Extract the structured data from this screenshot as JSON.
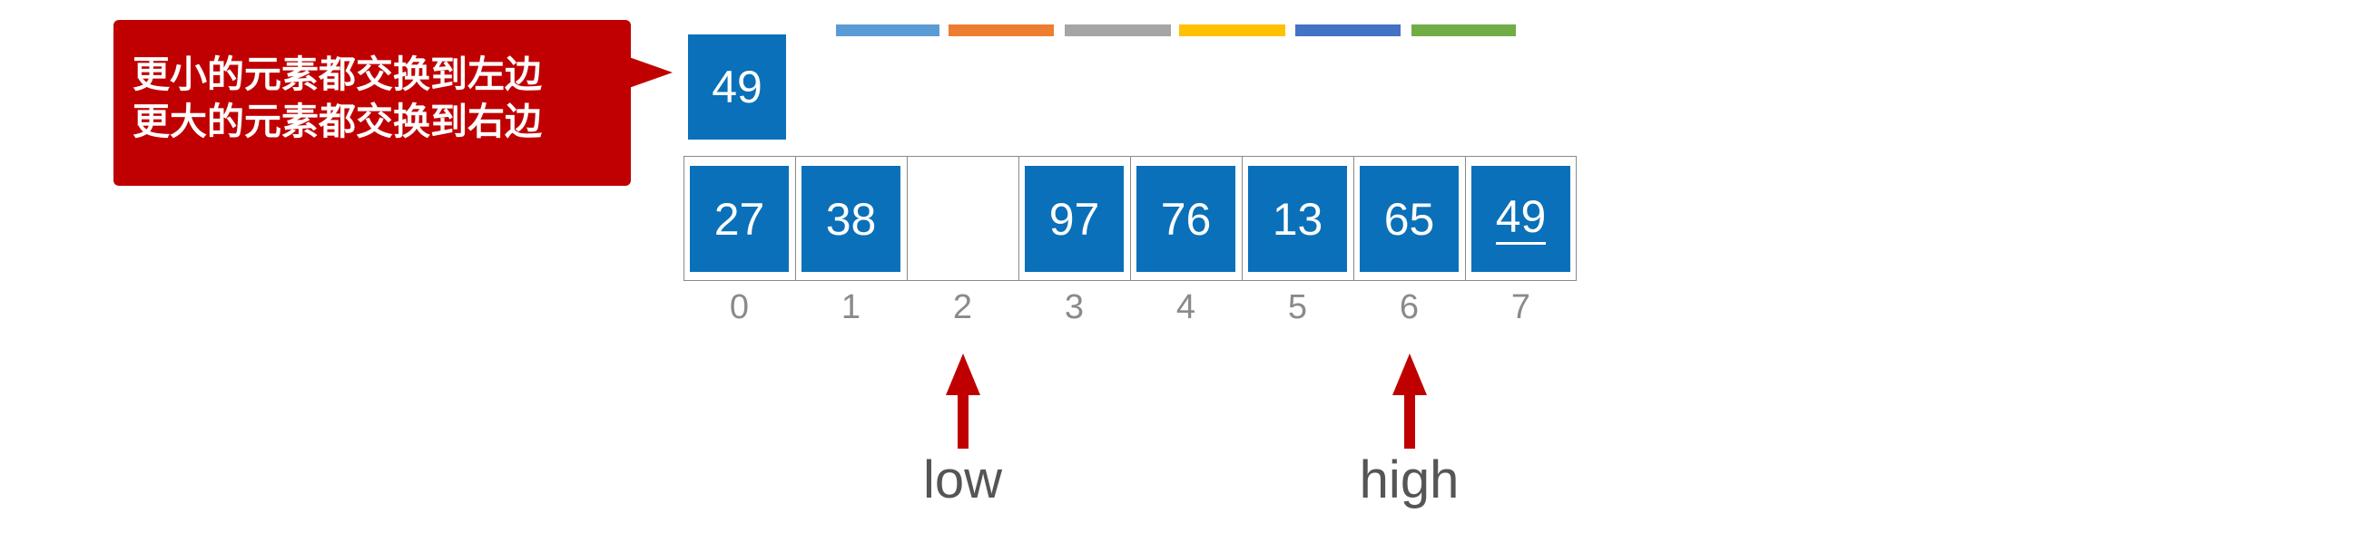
{
  "colors": {
    "cell_fill": "#0a70b9",
    "callout_fill": "#c00000",
    "arrow": "#c00000",
    "index_text": "#8a8a8a",
    "label_text": "#555555"
  },
  "color_bars": [
    "#5b9bd5",
    "#ed7d31",
    "#a5a5a5",
    "#ffc000",
    "#4472c4",
    "#70ad47"
  ],
  "callout": {
    "line1": "更小的元素都交换到左边",
    "line2": "更大的元素都交换到右边"
  },
  "pivot": "49",
  "array": [
    {
      "index": "0",
      "value": "27",
      "filled": true,
      "underlined": false
    },
    {
      "index": "1",
      "value": "38",
      "filled": true,
      "underlined": false
    },
    {
      "index": "2",
      "value": "",
      "filled": false,
      "underlined": false
    },
    {
      "index": "3",
      "value": "97",
      "filled": true,
      "underlined": false
    },
    {
      "index": "4",
      "value": "76",
      "filled": true,
      "underlined": false
    },
    {
      "index": "5",
      "value": "13",
      "filled": true,
      "underlined": false
    },
    {
      "index": "6",
      "value": "65",
      "filled": true,
      "underlined": false
    },
    {
      "index": "7",
      "value": "49",
      "filled": true,
      "underlined": true
    }
  ],
  "pointers": [
    {
      "label": "low",
      "index": 2,
      "icon": "up-arrow-icon"
    },
    {
      "label": "high",
      "index": 6,
      "icon": "up-arrow-icon"
    }
  ]
}
